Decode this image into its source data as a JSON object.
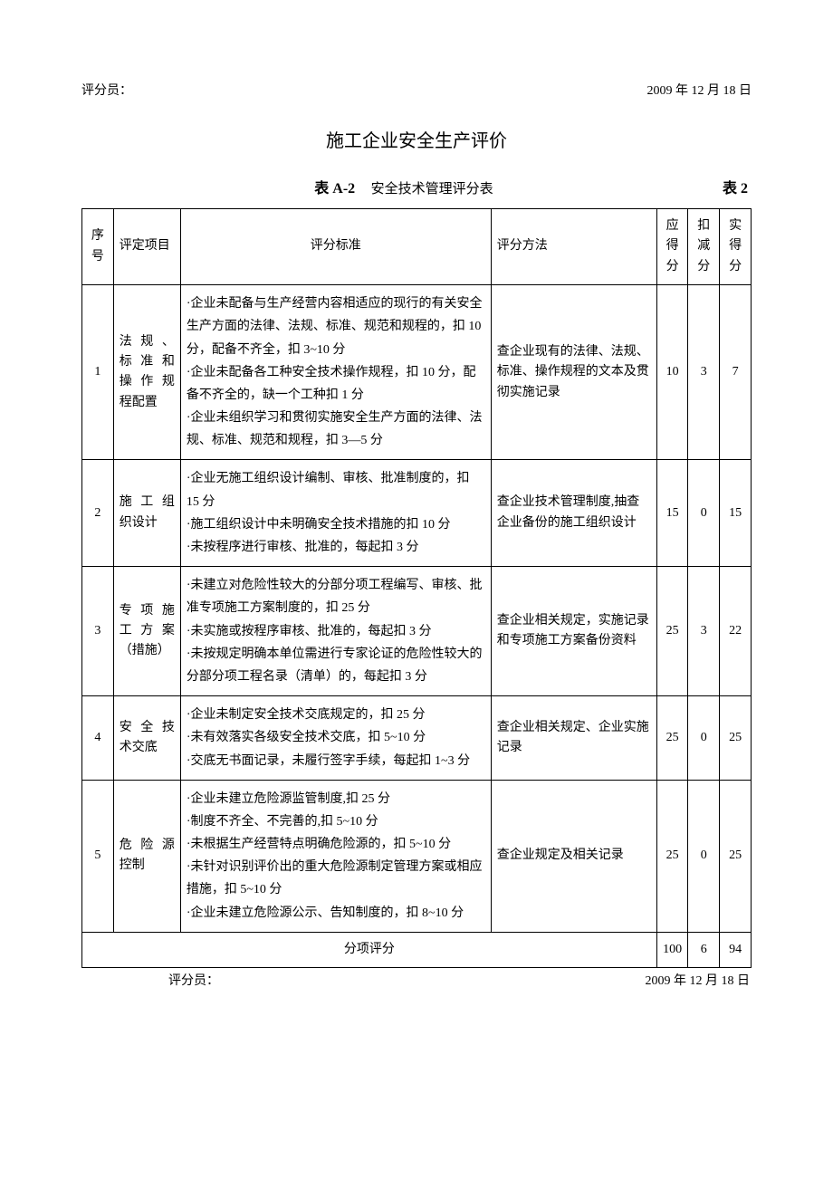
{
  "header": {
    "scorer_label": "评分员：",
    "date": "2009 年 12 月 18 日"
  },
  "main_title": "施工企业安全生产评价",
  "sub_title": {
    "table_label": "表 A-2",
    "table_name": "安全技术管理评分表",
    "table_num": "表 2"
  },
  "table": {
    "headers": {
      "seq": "序号",
      "item": "评定项目",
      "criteria": "评分标准",
      "method": "评分方法",
      "full": "应得分",
      "deduct": "扣减分",
      "actual": "实得分"
    },
    "rows": [
      {
        "seq": "1",
        "item": "法 规 、标 准 和操 作 规程配置",
        "criteria": "·企业未配备与生产经营内容相适应的现行的有关安全生产方面的法律、法规、标准、规范和规程的，扣 10 分，配备不齐全，扣 3~10 分\n·企业未配备各工种安全技术操作规程，扣 10 分，配备不齐全的，缺一个工种扣 1 分\n·企业未组织学习和贯彻实施安全生产方面的法律、法规、标准、规范和规程，扣 3—5 分",
        "method": "查企业现有的法律、法规、标准、操作规程的文本及贯彻实施记录",
        "full": "10",
        "deduct": "3",
        "actual": "7"
      },
      {
        "seq": "2",
        "item": "施 工 组织设计",
        "criteria": "·企业无施工组织设计编制、审核、批准制度的，扣 15 分\n·施工组织设计中未明确安全技术措施的扣 10 分\n·未按程序进行审核、批准的，每起扣 3 分",
        "method": "查企业技术管理制度,抽查企业备份的施工组织设计",
        "full": "15",
        "deduct": "0",
        "actual": "15"
      },
      {
        "seq": "3",
        "item": "专 项 施工 方 案（措施）",
        "criteria": "·未建立对危险性较大的分部分项工程编写、审核、批准专项施工方案制度的，扣 25 分\n·未实施或按程序审核、批准的，每起扣 3 分\n·未按规定明确本单位需进行专家论证的危险性较大的分部分项工程名录（清单）的，每起扣 3 分",
        "method": "查企业相关规定，实施记录和专项施工方案备份资料",
        "full": "25",
        "deduct": "3",
        "actual": "22"
      },
      {
        "seq": "4",
        "item": "安 全 技术交底",
        "criteria": "·企业未制定安全技术交底规定的，扣 25 分\n·未有效落实各级安全技术交底，扣 5~10 分\n·交底无书面记录，未履行签字手续，每起扣 1~3 分",
        "method": "查企业相关规定、企业实施记录",
        "full": "25",
        "deduct": "0",
        "actual": "25"
      },
      {
        "seq": "5",
        "item": "危 险 源控制",
        "criteria": "·企业未建立危险源监管制度,扣 25 分\n·制度不齐全、不完善的,扣 5~10 分\n·未根据生产经营特点明确危险源的，扣 5~10 分\n·未针对识别评价出的重大危险源制定管理方案或相应措施，扣 5~10 分\n·企业未建立危险源公示、告知制度的，扣 8~10 分",
        "method": "查企业规定及相关记录",
        "full": "25",
        "deduct": "0",
        "actual": "25"
      }
    ],
    "subtotal": {
      "label": "分项评分",
      "full": "100",
      "deduct": "6",
      "actual": "94"
    }
  },
  "footer": {
    "scorer_label": "评分员：",
    "date": "2009 年 12 月 18 日"
  }
}
